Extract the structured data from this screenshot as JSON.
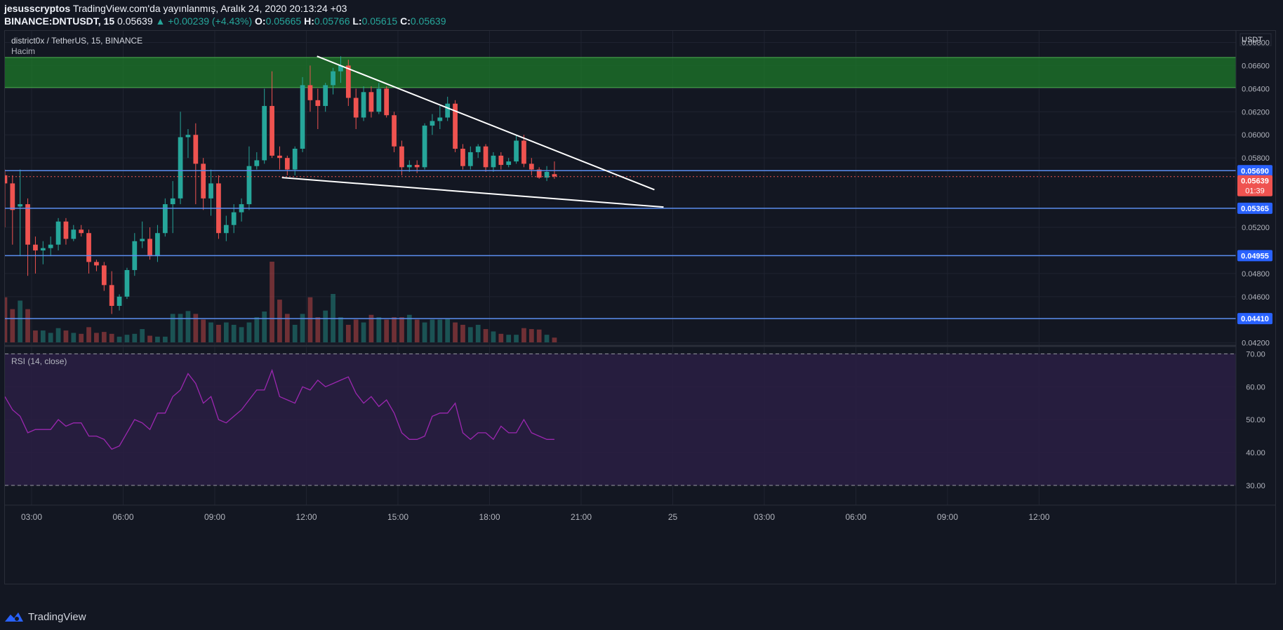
{
  "header": {
    "author": "jesusscryptos",
    "published": "TradingView.com'da yayınlanmış, Aralık 24, 2020 20:13:24 +03",
    "symbol": "BINANCE:DNTUSDT, 15",
    "last": "0.05639",
    "change": "▲ +0.00239 (+4.43%)",
    "o_label": "O:",
    "o": "0.05665",
    "h_label": "H:",
    "h": "0.05766",
    "l_label": "L:",
    "l": "0.05615",
    "c_label": "C:",
    "c": "0.05639"
  },
  "pane": {
    "title": "district0x / TetherUS, 15, BINANCE",
    "volume_label": "Hacim",
    "currency": "USDT",
    "rsi_label": "RSI (14, close)"
  },
  "footer": {
    "brand": "TradingView"
  },
  "colors": {
    "up": "#26a69a",
    "down": "#ef5350",
    "zone": "#1e7a2a",
    "level": "#5b8ef0",
    "rsi": "#9c27b0",
    "rsi_band": "#2a1e43",
    "price_badge": "#ef5350",
    "level_badge": "#2962ff"
  },
  "chart_data": [
    {
      "type": "candlestick",
      "title": "district0x / TetherUS, 15, BINANCE",
      "ylim": [
        0.0418,
        0.069
      ],
      "y_ticks": [
        "0.06800",
        "0.06600",
        "0.06400",
        "0.06200",
        "0.06000",
        "0.05800",
        "0.05200",
        "0.04800",
        "0.04600",
        "0.04200"
      ],
      "x_ticks": [
        "03:00",
        "06:00",
        "09:00",
        "12:00",
        "15:00",
        "18:00",
        "21:00",
        "25",
        "03:00",
        "06:00",
        "09:00",
        "12:00"
      ],
      "x_tick_positions_hours": [
        3,
        6,
        9,
        12,
        15,
        18,
        21,
        24,
        27,
        30,
        33,
        36
      ],
      "start_hour": 2.0,
      "interval_minutes": 15,
      "candles": [
        [
          0.0565,
          0.057,
          0.052,
          0.0558
        ],
        [
          0.0558,
          0.0565,
          0.0505,
          0.0535
        ],
        [
          0.0538,
          0.057,
          0.0495,
          0.054
        ],
        [
          0.054,
          0.0545,
          0.0478,
          0.0505
        ],
        [
          0.0505,
          0.0512,
          0.048,
          0.05
        ],
        [
          0.05,
          0.0508,
          0.0488,
          0.0502
        ],
        [
          0.0502,
          0.0512,
          0.0495,
          0.0505
        ],
        [
          0.0505,
          0.0528,
          0.05,
          0.0525
        ],
        [
          0.0525,
          0.0528,
          0.0505,
          0.051
        ],
        [
          0.051,
          0.0522,
          0.0508,
          0.0518
        ],
        [
          0.0518,
          0.0522,
          0.0512,
          0.0515
        ],
        [
          0.0515,
          0.0518,
          0.048,
          0.049
        ],
        [
          0.049,
          0.0492,
          0.0482,
          0.0487
        ],
        [
          0.0487,
          0.049,
          0.0465,
          0.047
        ],
        [
          0.047,
          0.0482,
          0.0445,
          0.0452
        ],
        [
          0.0452,
          0.0462,
          0.0448,
          0.046
        ],
        [
          0.046,
          0.0485,
          0.0458,
          0.0483
        ],
        [
          0.0483,
          0.0515,
          0.0478,
          0.0508
        ],
        [
          0.0508,
          0.0525,
          0.0502,
          0.051
        ],
        [
          0.051,
          0.052,
          0.0492,
          0.0495
        ],
        [
          0.0495,
          0.0522,
          0.049,
          0.0515
        ],
        [
          0.0515,
          0.0545,
          0.0512,
          0.054
        ],
        [
          0.054,
          0.056,
          0.0515,
          0.0545
        ],
        [
          0.0545,
          0.062,
          0.054,
          0.0598
        ],
        [
          0.0598,
          0.0605,
          0.058,
          0.06
        ],
        [
          0.06,
          0.061,
          0.054,
          0.0575
        ],
        [
          0.0575,
          0.058,
          0.0535,
          0.0545
        ],
        [
          0.0545,
          0.057,
          0.053,
          0.0558
        ],
        [
          0.0558,
          0.0565,
          0.051,
          0.0515
        ],
        [
          0.0515,
          0.053,
          0.0508,
          0.0522
        ],
        [
          0.0522,
          0.054,
          0.0515,
          0.0533
        ],
        [
          0.0533,
          0.0545,
          0.0525,
          0.054
        ],
        [
          0.054,
          0.059,
          0.0535,
          0.0573
        ],
        [
          0.0573,
          0.0585,
          0.057,
          0.0578
        ],
        [
          0.0578,
          0.064,
          0.0575,
          0.0625
        ],
        [
          0.0625,
          0.0655,
          0.058,
          0.0582
        ],
        [
          0.0582,
          0.059,
          0.057,
          0.058
        ],
        [
          0.058,
          0.0582,
          0.0565,
          0.057
        ],
        [
          0.057,
          0.059,
          0.0565,
          0.0588
        ],
        [
          0.0588,
          0.065,
          0.0585,
          0.0643
        ],
        [
          0.0643,
          0.066,
          0.062,
          0.063
        ],
        [
          0.063,
          0.064,
          0.0605,
          0.0625
        ],
        [
          0.0625,
          0.0645,
          0.062,
          0.0643
        ],
        [
          0.0643,
          0.0658,
          0.0635,
          0.0655
        ],
        [
          0.0655,
          0.0668,
          0.0645,
          0.066
        ],
        [
          0.066,
          0.0665,
          0.0625,
          0.0632
        ],
        [
          0.0632,
          0.064,
          0.0605,
          0.0615
        ],
        [
          0.0615,
          0.0642,
          0.0612,
          0.0637
        ],
        [
          0.0637,
          0.0642,
          0.0615,
          0.062
        ],
        [
          0.062,
          0.0645,
          0.0618,
          0.064
        ],
        [
          0.064,
          0.0642,
          0.0615,
          0.0617
        ],
        [
          0.0617,
          0.062,
          0.0585,
          0.059
        ],
        [
          0.059,
          0.0595,
          0.0565,
          0.0572
        ],
        [
          0.0572,
          0.0578,
          0.0568,
          0.0574
        ],
        [
          0.0574,
          0.0578,
          0.0567,
          0.0572
        ],
        [
          0.0572,
          0.061,
          0.057,
          0.0608
        ],
        [
          0.0608,
          0.0618,
          0.06,
          0.0612
        ],
        [
          0.0612,
          0.0625,
          0.0605,
          0.0615
        ],
        [
          0.0615,
          0.0633,
          0.0612,
          0.0627
        ],
        [
          0.0627,
          0.063,
          0.0585,
          0.0588
        ],
        [
          0.0588,
          0.0592,
          0.057,
          0.0573
        ],
        [
          0.0573,
          0.059,
          0.057,
          0.0585
        ],
        [
          0.0585,
          0.0592,
          0.058,
          0.059
        ],
        [
          0.059,
          0.0592,
          0.0568,
          0.0572
        ],
        [
          0.0572,
          0.0585,
          0.0568,
          0.0582
        ],
        [
          0.0582,
          0.0585,
          0.057,
          0.0574
        ],
        [
          0.0574,
          0.058,
          0.0572,
          0.0577
        ],
        [
          0.0577,
          0.06,
          0.0575,
          0.0595
        ],
        [
          0.0595,
          0.06,
          0.0572,
          0.0575
        ],
        [
          0.0575,
          0.058,
          0.0565,
          0.057
        ],
        [
          0.057,
          0.0572,
          0.0562,
          0.0563
        ],
        [
          0.0563,
          0.0573,
          0.056,
          0.0568
        ],
        [
          0.0566,
          0.0577,
          0.0562,
          0.0564
        ]
      ],
      "volumes": [
        95,
        70,
        88,
        70,
        25,
        25,
        20,
        30,
        25,
        20,
        18,
        32,
        20,
        22,
        18,
        12,
        16,
        18,
        28,
        14,
        12,
        12,
        60,
        60,
        66,
        60,
        48,
        42,
        37,
        42,
        37,
        32,
        42,
        53,
        65,
        170,
        90,
        60,
        37,
        60,
        95,
        53,
        67,
        102,
        53,
        37,
        48,
        42,
        58,
        53,
        48,
        53,
        53,
        58,
        48,
        42,
        48,
        48,
        51,
        42,
        37,
        32,
        37,
        28,
        23,
        18,
        16,
        16,
        30,
        28,
        27,
        16,
        10
      ],
      "bands": [
        {
          "type": "zone",
          "from": 0.0641,
          "to": 0.0667
        },
        {
          "type": "level",
          "value": 0.0569,
          "label": "0.05690"
        },
        {
          "type": "level",
          "value": 0.05365,
          "label": "0.05365"
        },
        {
          "type": "level",
          "value": 0.04955,
          "label": "0.04955"
        },
        {
          "type": "level",
          "value": 0.0441,
          "label": "0.04410"
        }
      ],
      "last_price": {
        "value": 0.05639,
        "label": "0.05639",
        "countdown": "01:39"
      },
      "trendlines": [
        {
          "from": [
            12.35,
            0.0668
          ],
          "to": [
            23.4,
            0.05525
          ]
        },
        {
          "from": [
            11.2,
            0.0563
          ],
          "to": [
            23.7,
            0.05375
          ]
        }
      ]
    },
    {
      "type": "line",
      "title": "RSI (14, close)",
      "ylim": [
        24,
        72
      ],
      "y_ticks": [
        "70.00",
        "60.00",
        "50.00",
        "40.00",
        "30.00"
      ],
      "bands": [
        70,
        30
      ],
      "values": [
        57,
        53,
        51,
        46,
        47,
        47,
        47,
        50,
        48,
        49,
        49,
        45,
        45,
        44,
        41,
        42,
        46,
        50,
        49,
        47,
        52,
        52,
        57,
        59,
        64,
        61,
        55,
        57,
        50,
        49,
        51,
        53,
        56,
        59,
        59,
        65,
        57,
        56,
        55,
        60,
        59,
        62,
        60,
        61,
        62,
        63,
        58,
        55,
        57,
        54,
        56,
        52,
        46,
        44,
        44,
        45,
        51,
        52,
        52,
        55,
        46,
        44,
        46,
        46,
        44,
        48,
        46,
        46,
        50,
        46,
        45,
        44,
        44
      ]
    }
  ]
}
